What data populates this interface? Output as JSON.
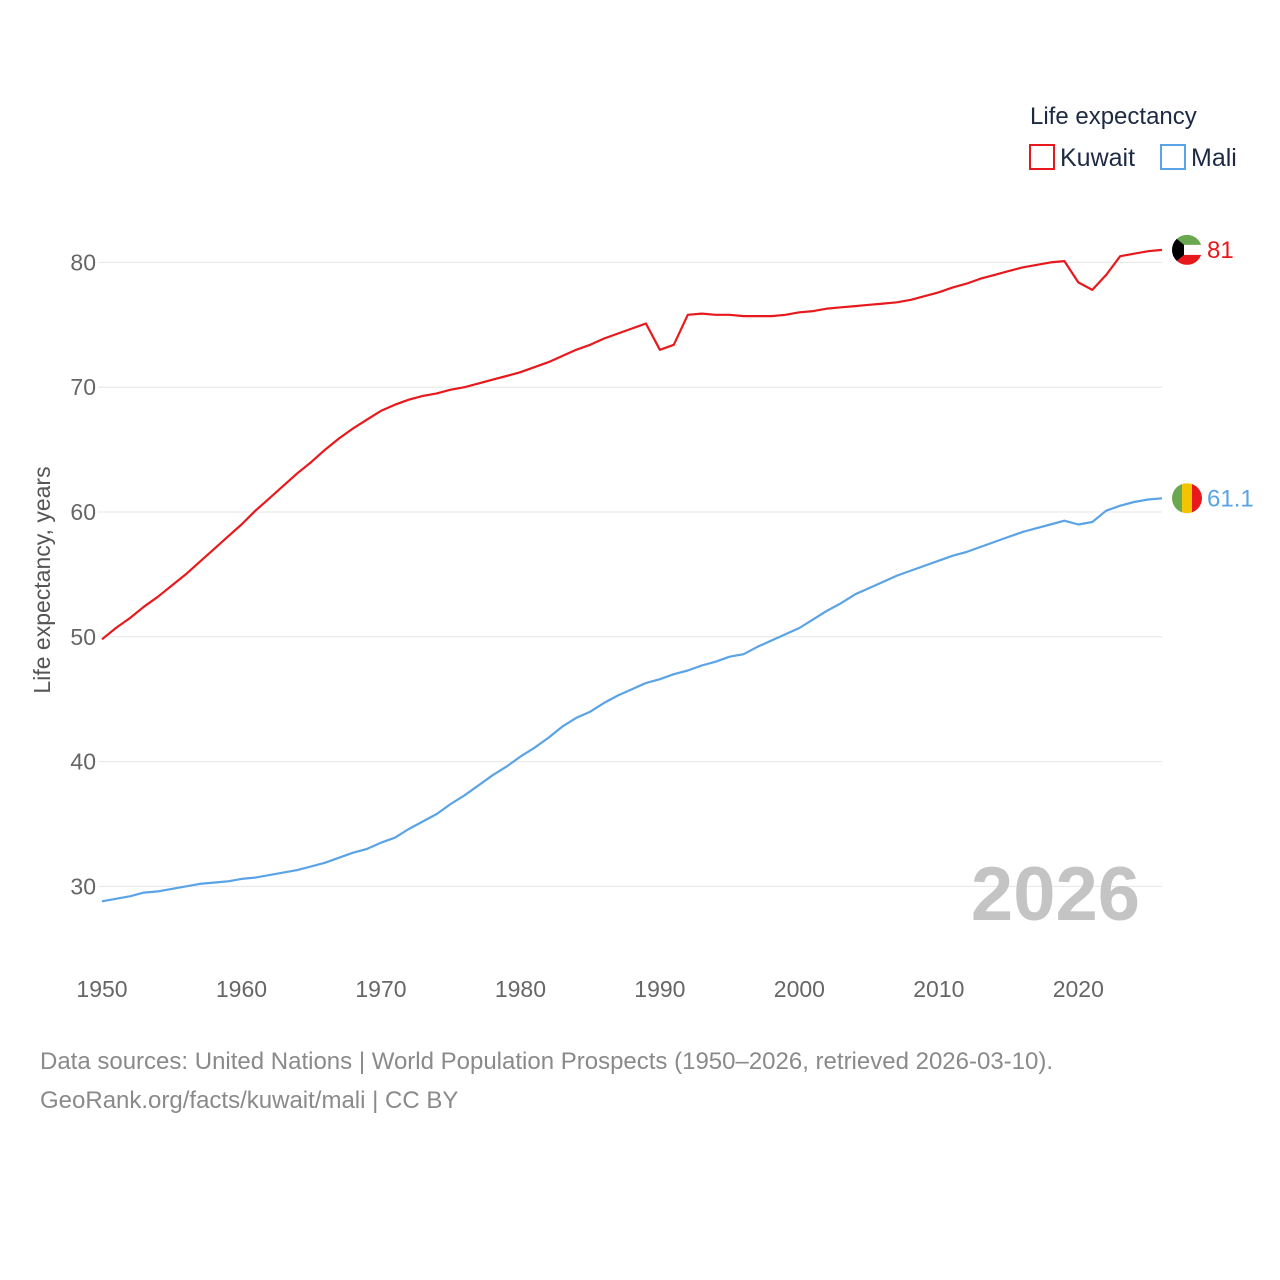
{
  "chart_data": {
    "type": "line",
    "title": "",
    "ylabel": "Life expectancy, years",
    "xlabel": "",
    "xlim": [
      1950,
      2026
    ],
    "ylim": [
      24.5,
      85
    ],
    "xticks": [
      1950,
      1960,
      1970,
      1980,
      1990,
      2000,
      2010,
      2020
    ],
    "yticks": [
      30,
      40,
      50,
      60,
      70,
      80
    ],
    "grid": true,
    "legend": {
      "title": "Life expectancy",
      "position": "top-right"
    },
    "watermark_year": "2026",
    "x": [
      1950,
      1951,
      1952,
      1953,
      1954,
      1955,
      1956,
      1957,
      1958,
      1959,
      1960,
      1961,
      1962,
      1963,
      1964,
      1965,
      1966,
      1967,
      1968,
      1969,
      1970,
      1971,
      1972,
      1973,
      1974,
      1975,
      1976,
      1977,
      1978,
      1979,
      1980,
      1981,
      1982,
      1983,
      1984,
      1985,
      1986,
      1987,
      1988,
      1989,
      1990,
      1991,
      1992,
      1993,
      1994,
      1995,
      1996,
      1997,
      1998,
      1999,
      2000,
      2001,
      2002,
      2003,
      2004,
      2005,
      2006,
      2007,
      2008,
      2009,
      2010,
      2011,
      2012,
      2013,
      2014,
      2015,
      2016,
      2017,
      2018,
      2019,
      2020,
      2021,
      2022,
      2023,
      2024,
      2025,
      2026
    ],
    "series": [
      {
        "name": "Kuwait",
        "color": "#e8191c",
        "end_label": "81",
        "values": [
          49.8,
          50.7,
          51.5,
          52.4,
          53.2,
          54.1,
          55.0,
          56.0,
          57.0,
          58.0,
          59.0,
          60.1,
          61.1,
          62.1,
          63.1,
          64.0,
          65.0,
          65.9,
          66.7,
          67.4,
          68.1,
          68.6,
          69.0,
          69.3,
          69.5,
          69.8,
          70.0,
          70.3,
          70.6,
          70.9,
          71.2,
          71.6,
          72.0,
          72.5,
          73.0,
          73.4,
          73.9,
          74.3,
          74.7,
          75.1,
          73.0,
          73.4,
          75.8,
          75.9,
          75.8,
          75.8,
          75.7,
          75.7,
          75.7,
          75.8,
          76.0,
          76.1,
          76.3,
          76.4,
          76.5,
          76.6,
          76.7,
          76.8,
          77.0,
          77.3,
          77.6,
          78.0,
          78.3,
          78.7,
          79.0,
          79.3,
          79.6,
          79.8,
          80.0,
          80.1,
          78.4,
          77.8,
          79.0,
          80.5,
          80.7,
          80.9,
          81.0
        ]
      },
      {
        "name": "Mali",
        "color": "#5aa3e6",
        "end_label": "61.1",
        "values": [
          28.8,
          29.0,
          29.2,
          29.5,
          29.6,
          29.8,
          30.0,
          30.2,
          30.3,
          30.4,
          30.6,
          30.7,
          30.9,
          31.1,
          31.3,
          31.6,
          31.9,
          32.3,
          32.7,
          33.0,
          33.5,
          33.9,
          34.6,
          35.2,
          35.8,
          36.6,
          37.3,
          38.1,
          38.9,
          39.6,
          40.4,
          41.1,
          41.9,
          42.8,
          43.5,
          44.0,
          44.7,
          45.3,
          45.8,
          46.3,
          46.6,
          47.0,
          47.3,
          47.7,
          48.0,
          48.4,
          48.6,
          49.2,
          49.7,
          50.2,
          50.7,
          51.4,
          52.1,
          52.7,
          53.4,
          53.9,
          54.4,
          54.9,
          55.3,
          55.7,
          56.1,
          56.5,
          56.8,
          57.2,
          57.6,
          58.0,
          58.4,
          58.7,
          59.0,
          59.3,
          59.0,
          59.2,
          60.1,
          60.5,
          60.8,
          61.0,
          61.1
        ]
      }
    ]
  },
  "footer": {
    "line1": "Data sources: United Nations | World Population Prospects (1950–2026, retrieved 2026-03-10).",
    "line2": "GeoRank.org/facts/kuwait/mali | CC BY"
  },
  "flags": {
    "kuwait": {
      "icon": "kuwait-flag-icon",
      "colors": [
        "#6aa84f",
        "#ffffff",
        "#e8191c",
        "#000000"
      ]
    },
    "mali": {
      "icon": "mali-flag-icon",
      "colors": [
        "#6aa84f",
        "#f2c500",
        "#e8191c"
      ]
    }
  }
}
